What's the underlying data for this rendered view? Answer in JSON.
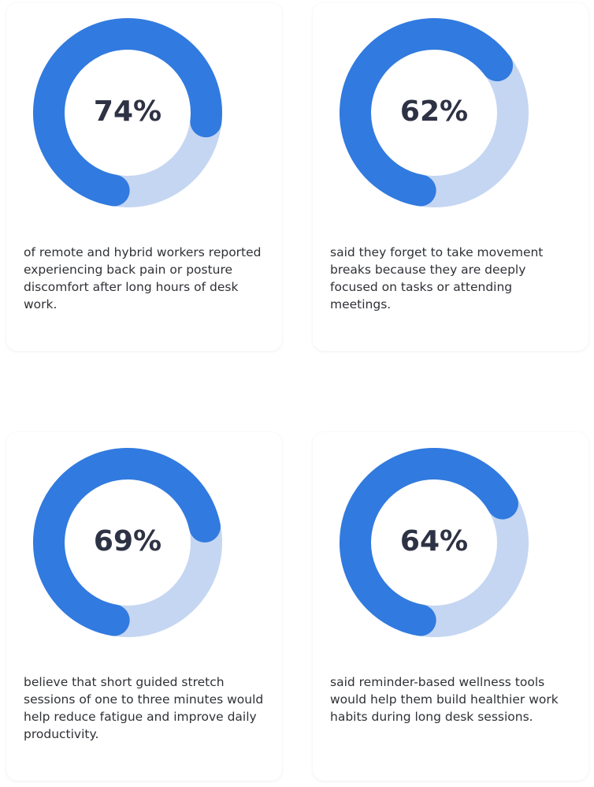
{
  "cards": [
    {
      "value": 74,
      "label": "74%",
      "text": "of remote and hybrid workers reported experiencing back pain or posture discomfort after long hours of desk work."
    },
    {
      "value": 62,
      "label": "62%",
      "text": "said they forget to take movement breaks because they are deeply focused on tasks or attending meetings."
    },
    {
      "value": 69,
      "label": "69%",
      "text": "believe that short guided stretch sessions of one to three minutes would help reduce fatigue and improve daily productivity."
    },
    {
      "value": 64,
      "label": "64%",
      "text": "said reminder-based wellness tools would help them build healthier work habits during long desk sessions."
    }
  ]
}
